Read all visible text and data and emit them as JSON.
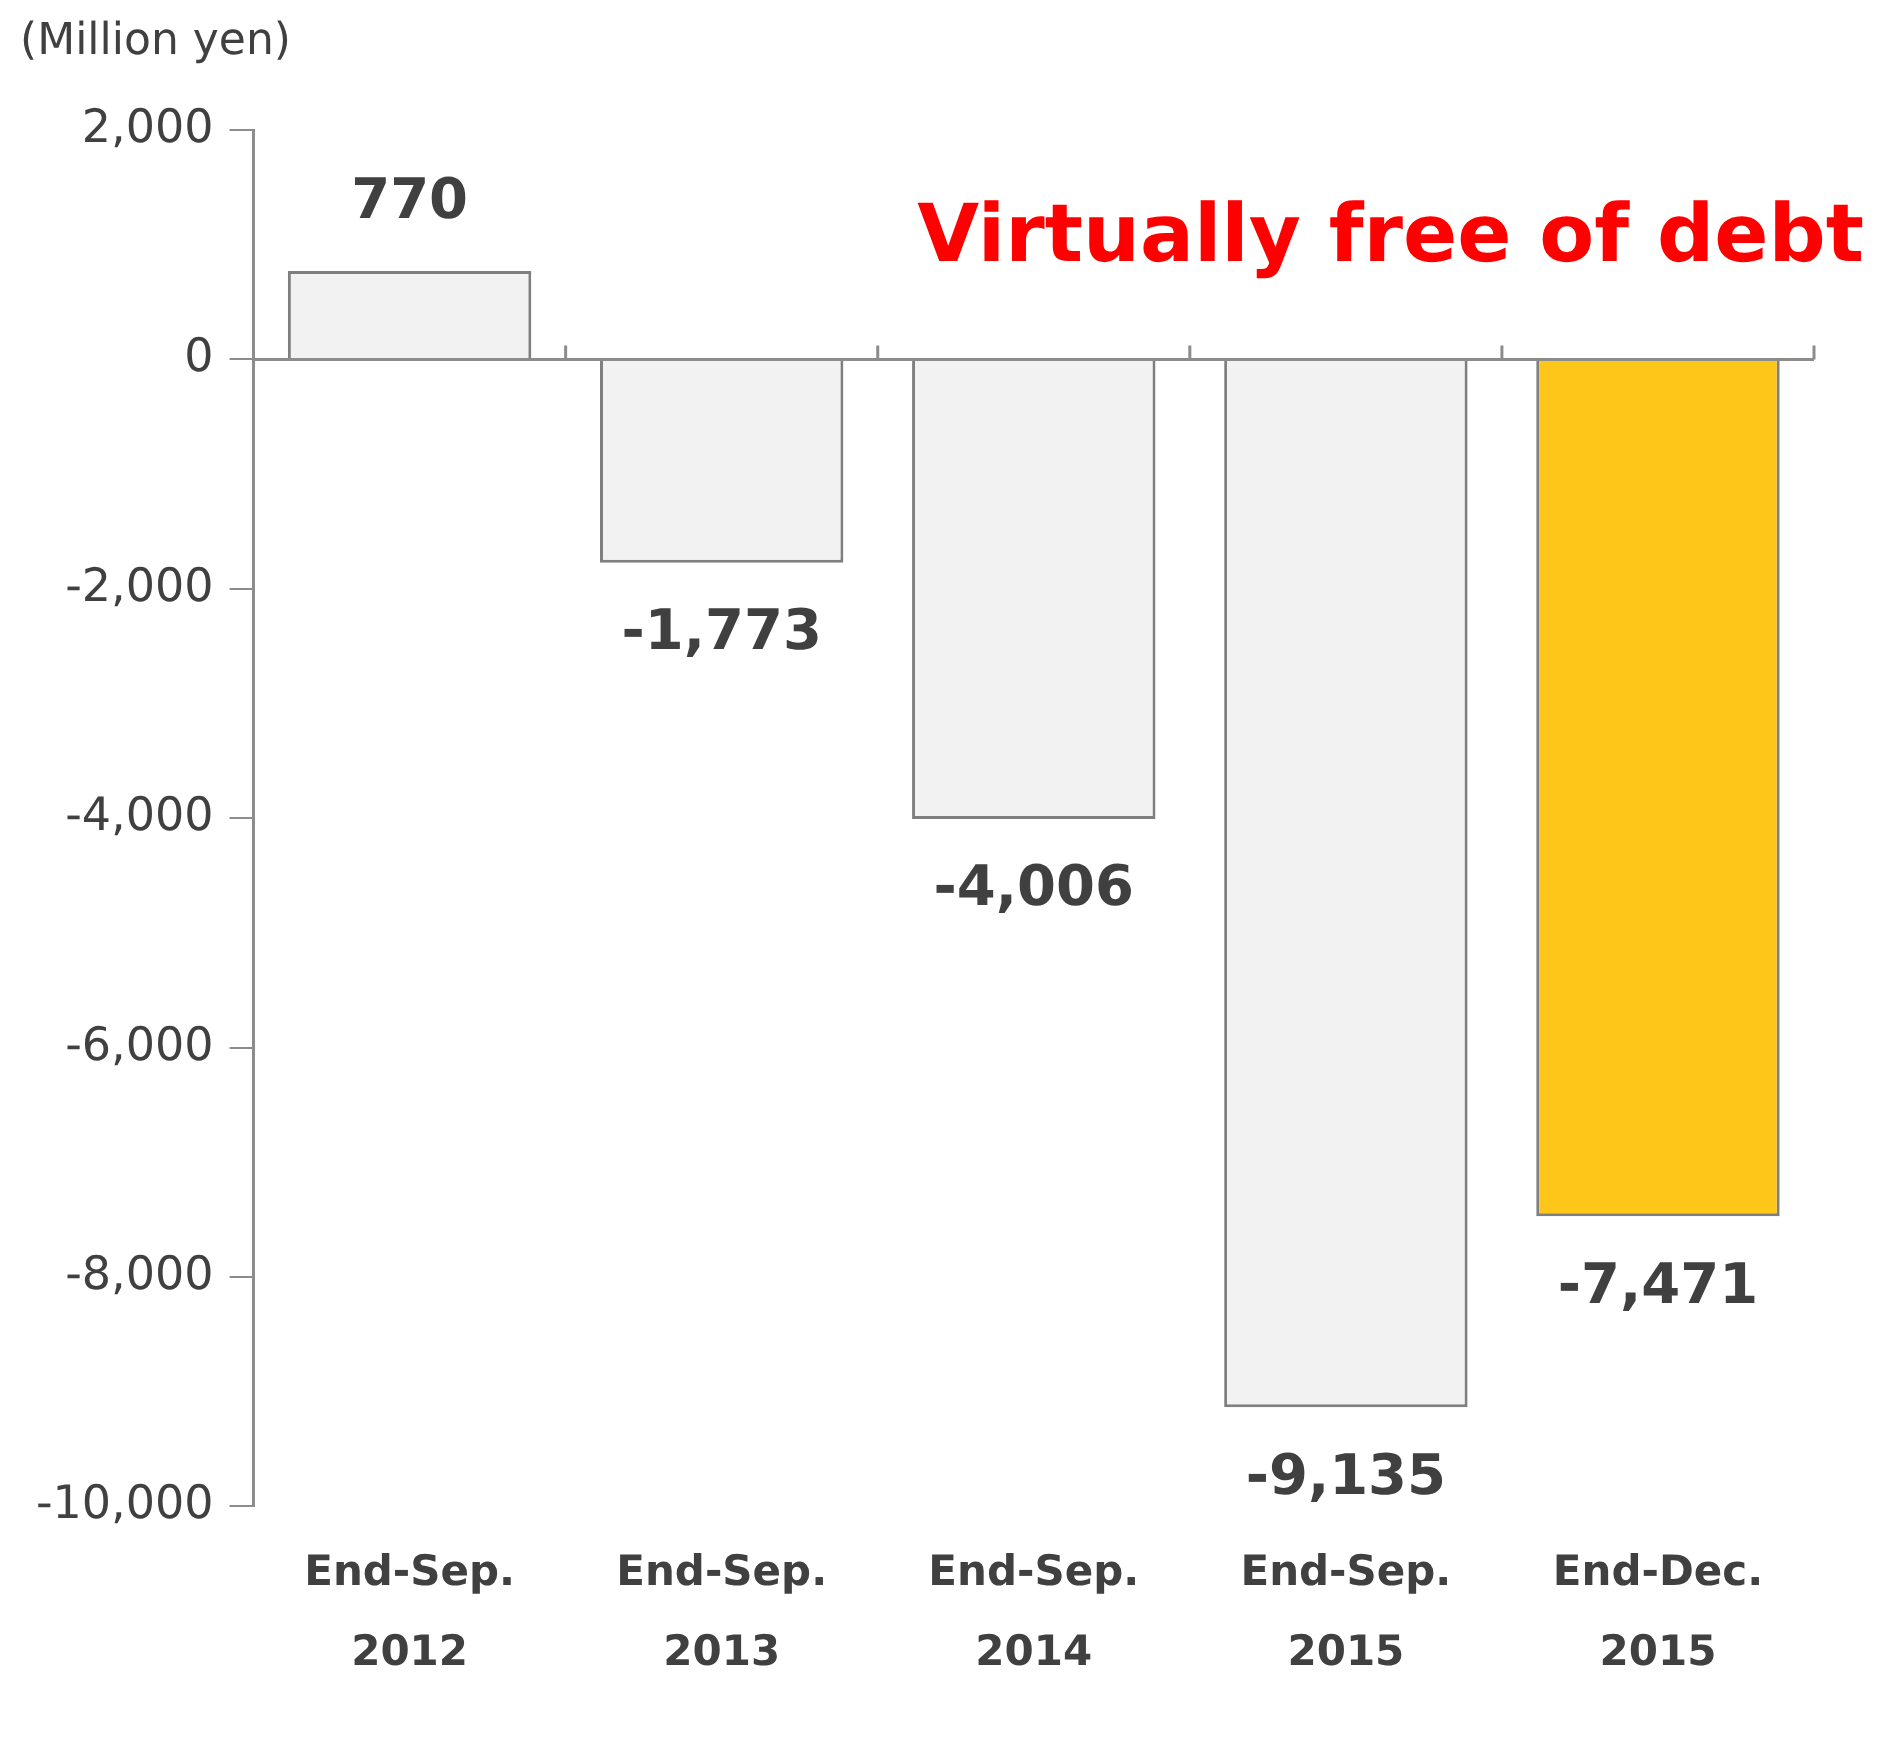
{
  "chart_data": {
    "type": "bar",
    "ylabel": "(Million yen)",
    "annotations": [
      "Virtually free of debt"
    ],
    "categories": [
      "End-Sep.\n2012",
      "End-Sep.\n2013",
      "End-Sep.\n2014",
      "End-Sep.\n2015",
      "End-Dec.\n2015"
    ],
    "values": [
      770,
      -1773,
      -4006,
      -9135,
      -7471
    ],
    "colors": [
      "#f2f2f2",
      "#f2f2f2",
      "#f2f2f2",
      "#f2f2f2",
      "#ffc61a"
    ],
    "ylim": [
      -10000,
      2000
    ],
    "yticks": [
      {
        "value": -10000,
        "label": "-10,000"
      },
      {
        "value": -8000,
        "label": "-8,000"
      },
      {
        "value": -6000,
        "label": "-6,000"
      },
      {
        "value": -4000,
        "label": "-4,000"
      },
      {
        "value": -2000,
        "label": "-2,000"
      },
      {
        "value": 0,
        "label": "0"
      },
      {
        "value": 2000,
        "label": "2,000"
      }
    ],
    "value_labels": [
      "770",
      "-1,773",
      "-4,006",
      "-9,135",
      "-7,471"
    ],
    "legend": false
  }
}
